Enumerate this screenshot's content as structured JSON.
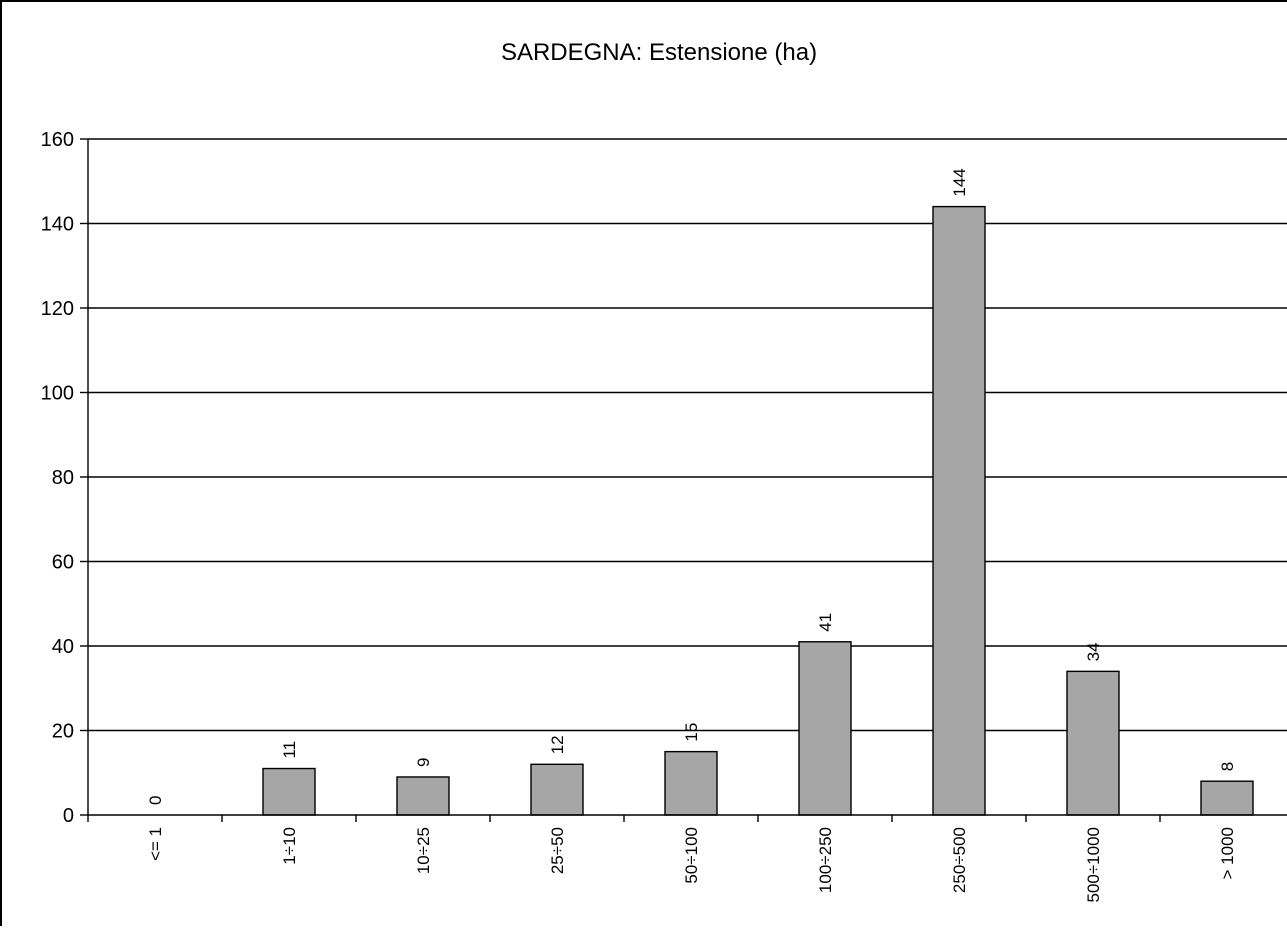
{
  "chart_data": {
    "type": "bar",
    "title": "SARDEGNA: Estensione (ha)",
    "xlabel": "",
    "ylabel": "",
    "categories": [
      "<= 1",
      "1÷10",
      "10÷25",
      "25÷50",
      "50÷100",
      "100÷250",
      "250÷500",
      "500÷1000",
      "> 1000"
    ],
    "values": [
      0,
      11,
      9,
      12,
      15,
      41,
      144,
      34,
      8
    ],
    "ylim": [
      0,
      160
    ],
    "yticks": [
      0,
      20,
      40,
      60,
      80,
      100,
      120,
      140,
      160
    ],
    "grid": true,
    "legend": "none",
    "bar_color": "#a6a6a6"
  }
}
